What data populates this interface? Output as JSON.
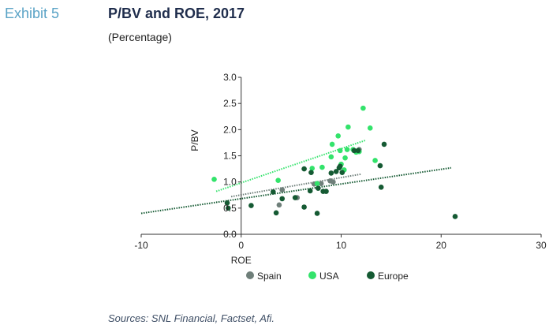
{
  "header": {
    "exhibit": "Exhibit 5",
    "title": "P/BV and ROE, 2017",
    "subtitle": "(Percentage)"
  },
  "footer": {
    "source": "Sources: SNL Financial, Factset, Afi."
  },
  "colors": {
    "Spain": "#6f7f7a",
    "USA": "#33e36b",
    "Europe": "#155a33",
    "axis": "#333333"
  },
  "chart_data": {
    "type": "scatter",
    "xlabel": "ROE",
    "ylabel": "P/BV",
    "xlim": [
      -10,
      30
    ],
    "ylim": [
      0,
      3
    ],
    "xticks": [
      "-10",
      "0",
      "10",
      "20",
      "30"
    ],
    "yticks": [
      "0.0",
      "0.5",
      "1.0",
      "1.5",
      "2.0",
      "2.5",
      "3.0"
    ],
    "grid": false,
    "legend": "bottom",
    "series": [
      {
        "name": "Spain",
        "points": [
          [
            4.1,
            0.85
          ],
          [
            3.8,
            0.56
          ],
          [
            5.6,
            0.7
          ],
          [
            7.3,
            0.96
          ],
          [
            8.0,
            0.97
          ],
          [
            8.9,
            1.02
          ],
          [
            9.2,
            1.0
          ],
          [
            11.8,
            1.62
          ]
        ],
        "trend": [
          [
            -1.0,
            0.72
          ],
          [
            12.0,
            1.15
          ]
        ]
      },
      {
        "name": "USA",
        "points": [
          [
            -2.7,
            1.05
          ],
          [
            3.7,
            1.03
          ],
          [
            7.1,
            1.26
          ],
          [
            7.6,
            0.97
          ],
          [
            8.1,
            1.28
          ],
          [
            9.0,
            1.48
          ],
          [
            9.1,
            1.72
          ],
          [
            9.7,
            1.88
          ],
          [
            9.9,
            1.6
          ],
          [
            10.0,
            1.34
          ],
          [
            10.3,
            1.23
          ],
          [
            10.4,
            1.46
          ],
          [
            10.6,
            1.62
          ],
          [
            10.7,
            2.05
          ],
          [
            11.2,
            1.62
          ],
          [
            11.5,
            1.57
          ],
          [
            11.8,
            1.58
          ],
          [
            12.2,
            2.41
          ],
          [
            12.9,
            2.03
          ],
          [
            13.4,
            1.41
          ]
        ],
        "trend": [
          [
            -2.5,
            0.82
          ],
          [
            12.5,
            1.8
          ]
        ]
      },
      {
        "name": "Europe",
        "points": [
          [
            -1.4,
            0.6
          ],
          [
            -1.3,
            0.5
          ],
          [
            1.0,
            0.55
          ],
          [
            3.2,
            0.81
          ],
          [
            3.5,
            0.41
          ],
          [
            4.1,
            0.68
          ],
          [
            5.4,
            0.7
          ],
          [
            6.3,
            1.25
          ],
          [
            6.3,
            0.52
          ],
          [
            6.9,
            0.83
          ],
          [
            7.0,
            1.18
          ],
          [
            7.6,
            0.4
          ],
          [
            7.7,
            0.88
          ],
          [
            8.2,
            0.82
          ],
          [
            8.5,
            0.82
          ],
          [
            9.0,
            1.17
          ],
          [
            9.5,
            1.2
          ],
          [
            9.8,
            1.27
          ],
          [
            9.9,
            1.3
          ],
          [
            10.1,
            1.18
          ],
          [
            11.3,
            1.6
          ],
          [
            11.7,
            1.6
          ],
          [
            13.9,
            1.31
          ],
          [
            14.0,
            0.9
          ],
          [
            14.3,
            1.72
          ],
          [
            21.4,
            0.34
          ]
        ],
        "trend": [
          [
            -10.0,
            0.4
          ],
          [
            21.0,
            1.27
          ]
        ]
      }
    ]
  }
}
